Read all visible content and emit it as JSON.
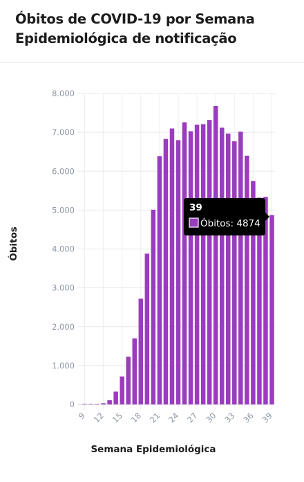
{
  "chart_data": {
    "type": "bar",
    "title": [
      "Óbitos de COVID-19 por Semana",
      "Epidemiológica de notificação"
    ],
    "xlabel": "Semana Epidemiológica",
    "ylabel": "Óbitos",
    "x": [
      9,
      10,
      11,
      12,
      13,
      14,
      15,
      16,
      17,
      18,
      19,
      20,
      21,
      22,
      23,
      24,
      25,
      26,
      27,
      28,
      29,
      30,
      31,
      32,
      33,
      34,
      35,
      36,
      37,
      38,
      39
    ],
    "x_tick_labels": [
      "9",
      "12",
      "15",
      "18",
      "21",
      "24",
      "27",
      "30",
      "33",
      "36",
      "39"
    ],
    "values": [
      2,
      5,
      10,
      30,
      110,
      330,
      720,
      1230,
      1700,
      2720,
      3880,
      5010,
      6390,
      6830,
      7100,
      6800,
      7260,
      7030,
      7200,
      7210,
      7320,
      7680,
      7120,
      6970,
      6770,
      7020,
      6400,
      5750,
      5320,
      5340,
      4874
    ],
    "ylim": [
      0,
      8000
    ],
    "y_ticks": [
      0,
      1000,
      2000,
      3000,
      4000,
      5000,
      6000,
      7000,
      8000
    ],
    "y_tick_labels": [
      "0",
      "1.000",
      "2.000",
      "3.000",
      "4.000",
      "5.000",
      "6.000",
      "7.000",
      "8.000"
    ],
    "grid": true,
    "bar_color": "#9b3cbf",
    "tooltip": {
      "title": "39",
      "series_label": "Óbitos: 4874",
      "color": "#9b3cbf"
    }
  }
}
